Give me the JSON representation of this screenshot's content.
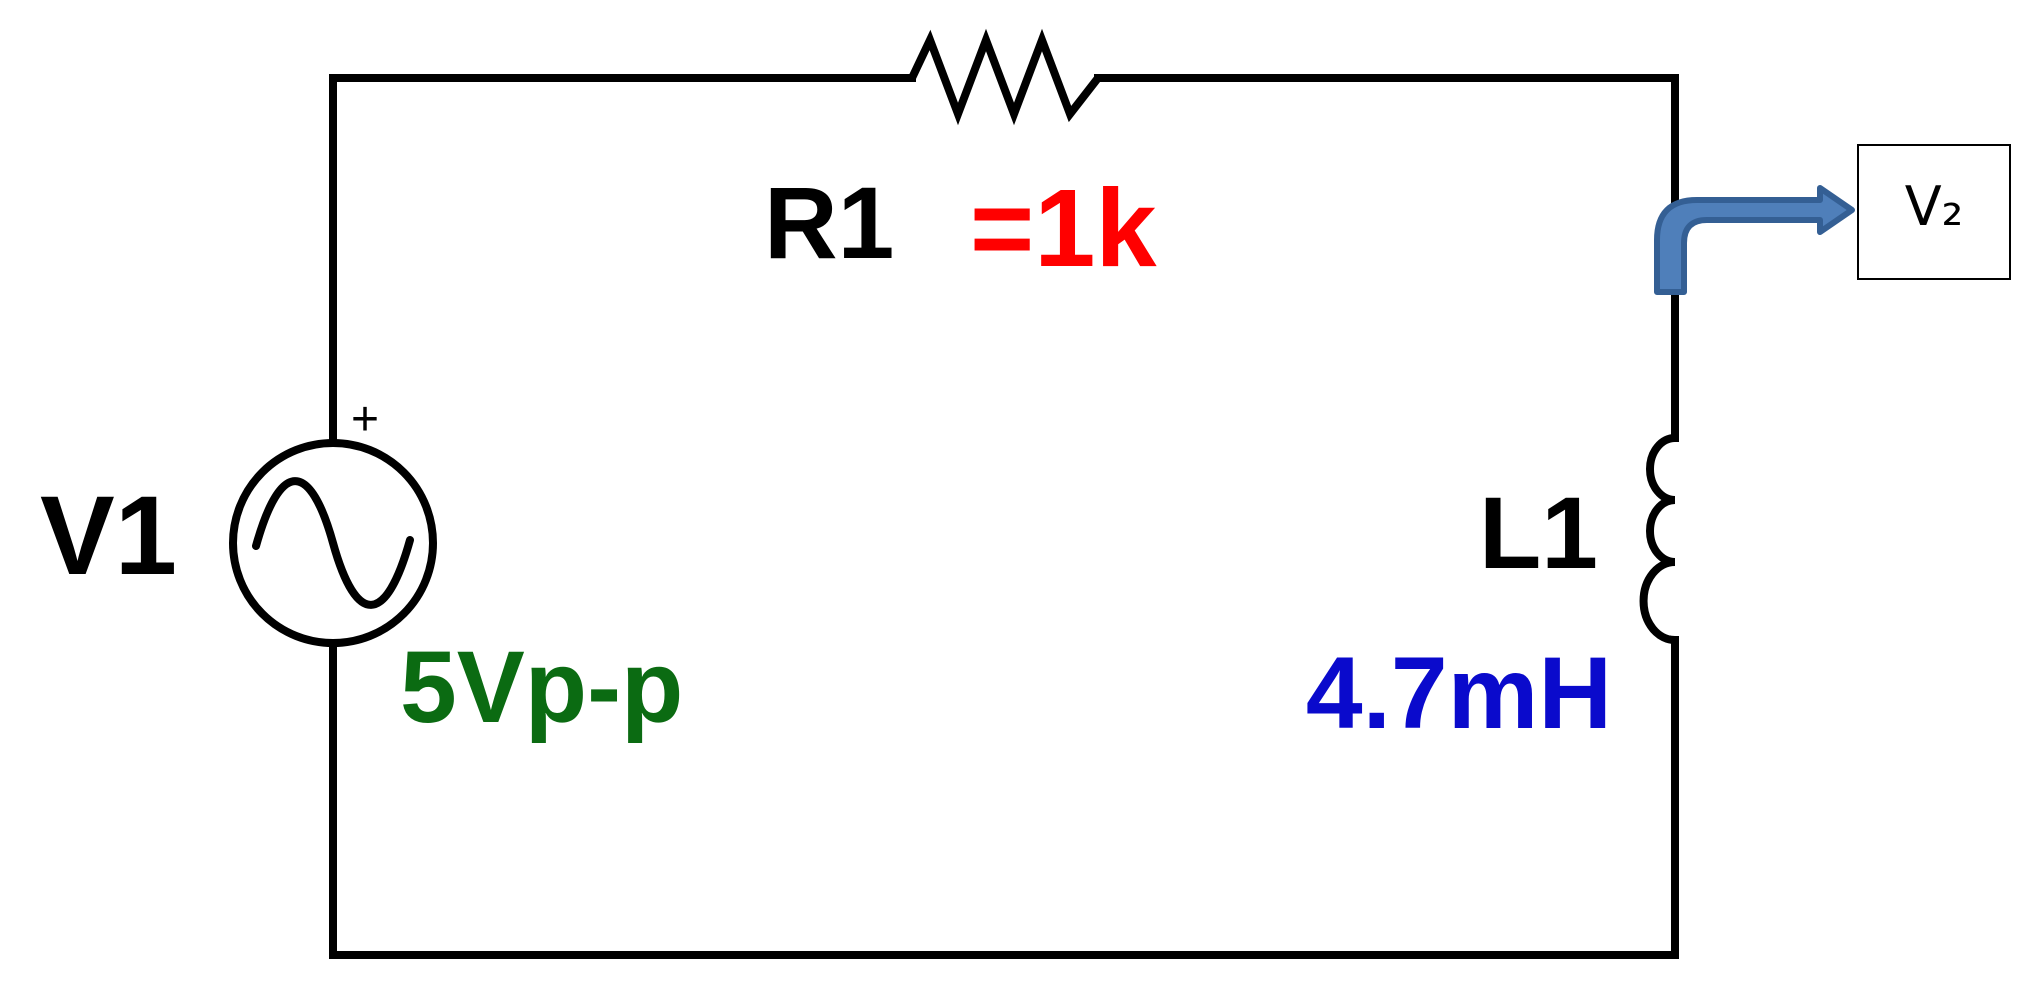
{
  "components": {
    "source": {
      "name": "V1",
      "value": "5Vp-p",
      "polarity": "+",
      "value_color": "#0b6b12"
    },
    "resistor": {
      "name": "R1",
      "value": "=1k",
      "value_color": "#ff0000"
    },
    "inductor": {
      "name": "L1",
      "value": "4.7mH",
      "value_color": "#0a0acc"
    }
  },
  "probe": {
    "label": "V₂",
    "arrow_color": "#4f7fba",
    "arrow_outline": "#345f94"
  },
  "colors": {
    "wire": "#000000",
    "labels": "#000000"
  }
}
